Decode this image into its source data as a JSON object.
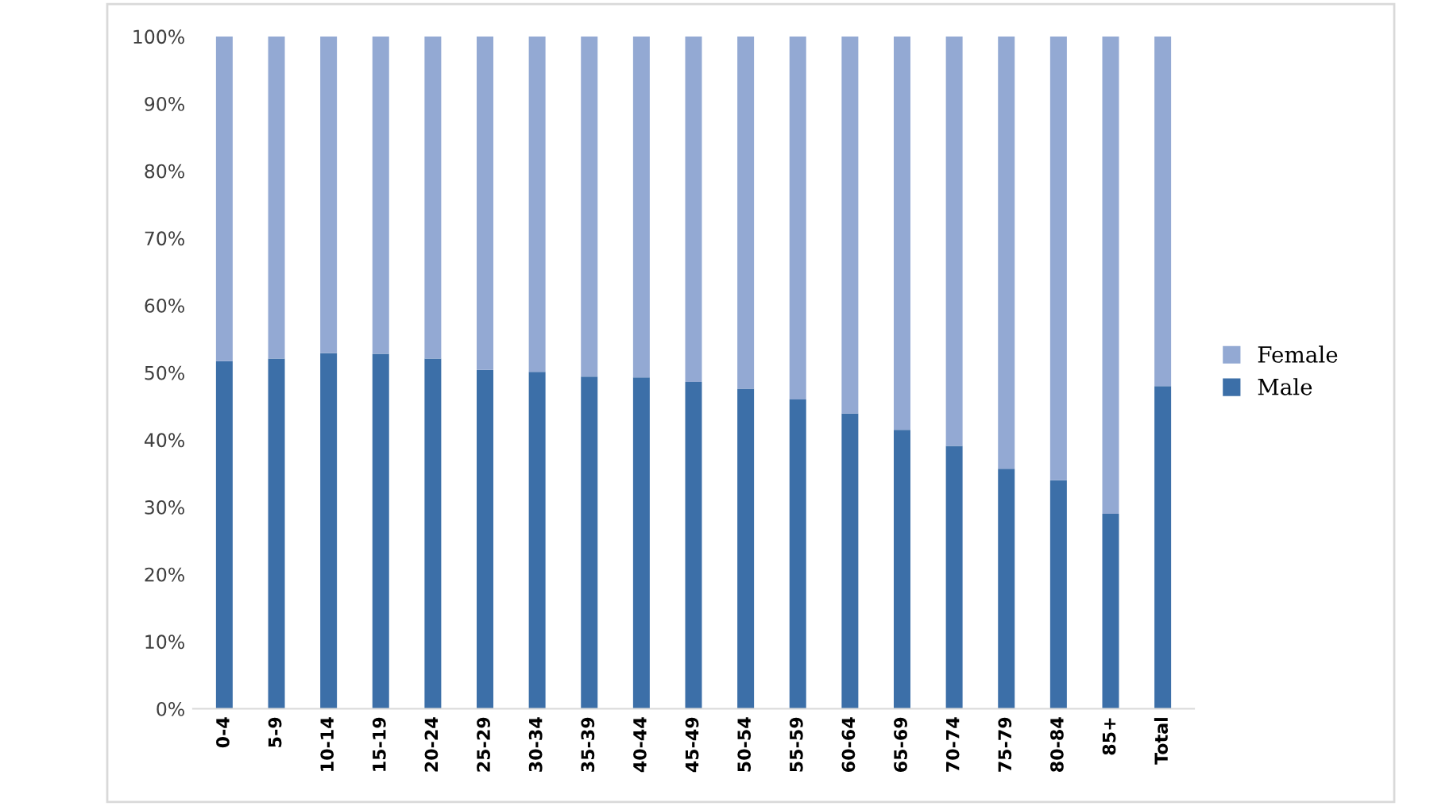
{
  "chart_data": {
    "type": "bar",
    "stacked": true,
    "categories": [
      "0-4",
      "5-9",
      "10-14",
      "15-19",
      "20-24",
      "25-29",
      "30-34",
      "35-39",
      "40-44",
      "45-49",
      "50-54",
      "55-59",
      "60-64",
      "65-69",
      "70-74",
      "75-79",
      "80-84",
      "85+",
      "Total"
    ],
    "series": [
      {
        "name": "Male",
        "color": "#3c6fa8",
        "values": [
          51.7,
          52.1,
          52.9,
          52.8,
          52.1,
          50.4,
          50.1,
          49.4,
          49.3,
          48.6,
          47.6,
          46.0,
          43.9,
          41.5,
          39.1,
          35.7,
          34.0,
          29.0,
          48.0
        ]
      },
      {
        "name": "Female",
        "color": "#93a9d3",
        "values": [
          48.3,
          47.9,
          47.1,
          47.2,
          47.9,
          49.6,
          49.9,
          50.6,
          50.7,
          51.4,
          52.4,
          54.0,
          56.1,
          58.5,
          60.9,
          64.3,
          66.0,
          71.0,
          52.0
        ]
      }
    ],
    "ylim": [
      0,
      100
    ],
    "yticks": [
      {
        "value": 0,
        "label": "0%"
      },
      {
        "value": 10,
        "label": "10%"
      },
      {
        "value": 20,
        "label": "20%"
      },
      {
        "value": 30,
        "label": "30%"
      },
      {
        "value": 40,
        "label": "40%"
      },
      {
        "value": 50,
        "label": "50%"
      },
      {
        "value": 60,
        "label": "60%"
      },
      {
        "value": 70,
        "label": "70%"
      },
      {
        "value": 80,
        "label": "80%"
      },
      {
        "value": 90,
        "label": "90%"
      },
      {
        "value": 100,
        "label": "100%"
      }
    ],
    "grid": false,
    "legend": "right"
  }
}
